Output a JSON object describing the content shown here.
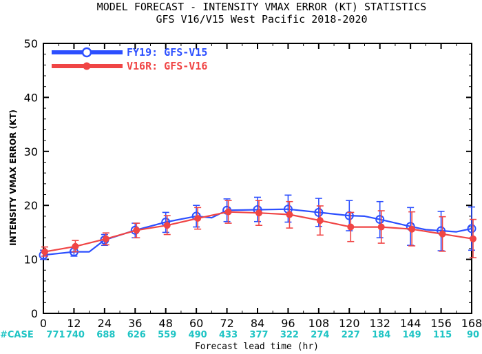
{
  "chart_data": {
    "type": "line",
    "title": "MODEL FORECAST - INTENSITY VMAX ERROR (KT) STATISTICS",
    "subtitle": "GFS V16/V15 West Pacific 2018-2020",
    "xlabel": "Forecast lead time (hr)",
    "ylabel": "INTENSITY VMAX ERROR (KT)",
    "x": [
      0,
      12,
      24,
      36,
      48,
      60,
      72,
      84,
      96,
      108,
      120,
      132,
      144,
      156,
      168
    ],
    "xlim": [
      0,
      168
    ],
    "ylim": [
      0,
      50
    ],
    "yticks": [
      0,
      10,
      20,
      30,
      40,
      50
    ],
    "case_label": "#CASE",
    "cases": [
      "771",
      "740",
      "688",
      "626",
      "559",
      "490",
      "433",
      "377",
      "322",
      "274",
      "227",
      "184",
      "149",
      "115",
      "90"
    ],
    "legend_position": "top-left",
    "series": [
      {
        "name": "FY19: GFS-V15",
        "color": "#2c4fff",
        "marker": "open-circle",
        "values": [
          10.8,
          11.4,
          13.6,
          15.4,
          16.9,
          18.0,
          19.1,
          19.2,
          19.3,
          18.7,
          18.1,
          17.4,
          16.1,
          15.3,
          15.7
        ],
        "error_low": [
          10.0,
          10.6,
          12.6,
          14.0,
          15.0,
          16.0,
          17.0,
          17.0,
          16.9,
          16.1,
          15.3,
          14.0,
          12.6,
          11.6,
          11.7
        ],
        "error_high": [
          11.7,
          12.2,
          14.6,
          16.7,
          18.7,
          20.0,
          21.2,
          21.5,
          21.9,
          21.3,
          20.9,
          20.7,
          19.6,
          18.9,
          19.7
        ],
        "interp_values": [
          11.4,
          17.7,
          18.0,
          15.5,
          15.1
        ],
        "interp_x": [
          18,
          66,
          126,
          150,
          162
        ]
      },
      {
        "name": "V16R: GFS-V16",
        "color": "#f04545",
        "marker": "filled-circle",
        "values": [
          11.4,
          12.4,
          13.8,
          15.4,
          16.3,
          17.6,
          18.8,
          18.6,
          18.3,
          17.2,
          16.0,
          16.0,
          15.6,
          14.7,
          13.8
        ],
        "error_low": [
          10.6,
          11.4,
          12.7,
          14.0,
          14.6,
          15.6,
          16.7,
          16.3,
          15.8,
          14.5,
          13.3,
          13.0,
          12.5,
          11.5,
          10.3
        ],
        "error_high": [
          12.3,
          13.5,
          14.9,
          16.7,
          18.1,
          19.6,
          20.9,
          20.9,
          20.7,
          19.9,
          18.7,
          19.0,
          18.8,
          17.9,
          17.4
        ]
      }
    ]
  }
}
